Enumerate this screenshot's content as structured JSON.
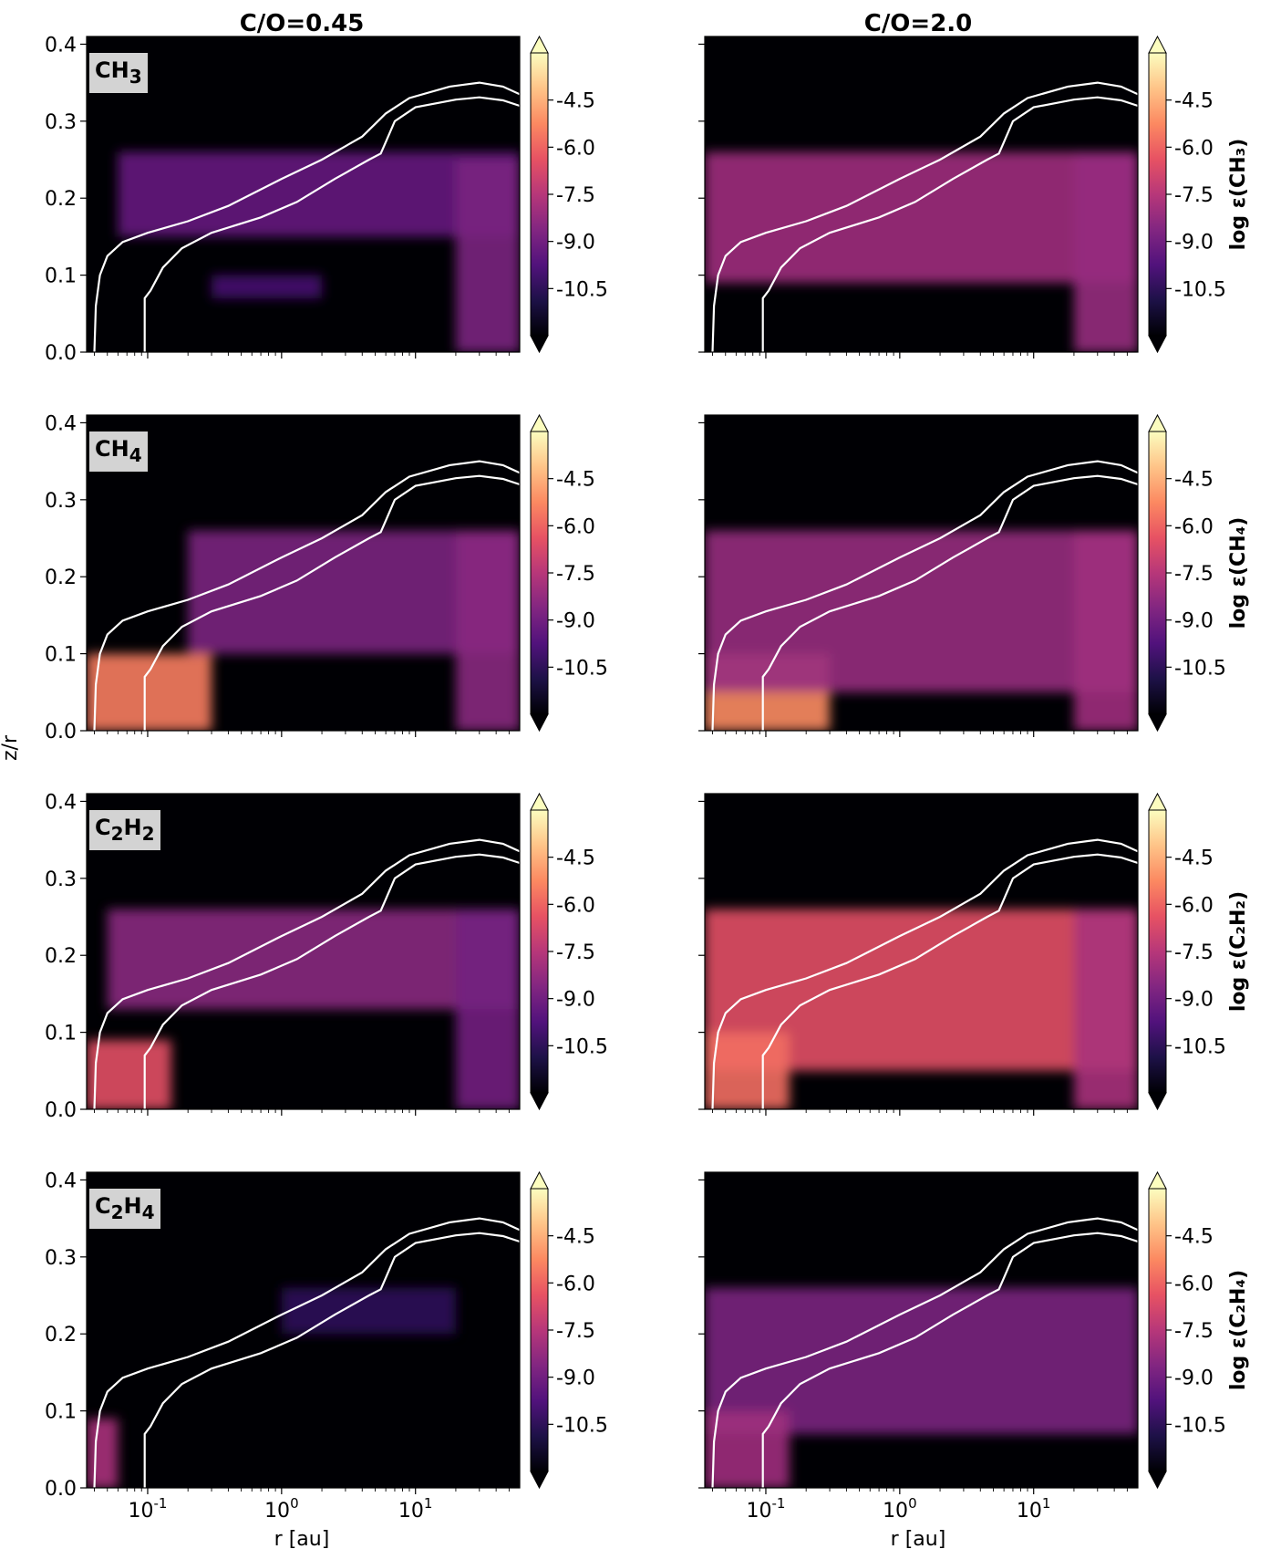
{
  "figure": {
    "ylabel": "z/r",
    "xlabel": "r [au]",
    "columns": [
      {
        "title": "C/O=0.45"
      },
      {
        "title": "C/O=2.0"
      }
    ]
  },
  "chart_data": {
    "type": "heatmap",
    "xscale": "log",
    "x_tick_labels": [
      "10^-1",
      "10^0",
      "10^1"
    ],
    "x_ticks": [
      0.1,
      1,
      10
    ],
    "xlim": [
      0.035,
      60
    ],
    "ylim": [
      0.0,
      0.41
    ],
    "y_ticks": [
      "0.0",
      "0.1",
      "0.2",
      "0.3",
      "0.4"
    ],
    "colorbar": {
      "ticks": [
        "-4.5",
        "-6.0",
        "-7.5",
        "-9.0",
        "-10.5"
      ],
      "tick_values": [
        -4.5,
        -6.0,
        -7.5,
        -9.0,
        -10.5
      ],
      "range": [
        -12,
        -3
      ],
      "extend": "both",
      "colormap": "magma"
    },
    "colormap_stops": [
      "#000004",
      "#1d1147",
      "#51127c",
      "#822681",
      "#b73779",
      "#e75263",
      "#fc8961",
      "#fec488",
      "#fcfdbf"
    ],
    "rows": [
      {
        "species_html": "CH<sub>3</sub>",
        "species_label": "CH3",
        "colorbar_label": "log ε(CH₃)"
      },
      {
        "species_html": "CH<sub>4</sub>",
        "species_label": "CH4",
        "colorbar_label": "log ε(CH₄)"
      },
      {
        "species_html": "C<sub>2</sub>H<sub>2</sub>",
        "species_label": "C2H2",
        "colorbar_label": "log ε(C₂H₂)"
      },
      {
        "species_html": "C<sub>2</sub>H<sub>4</sub>",
        "species_label": "C2H4",
        "colorbar_label": "log ε(C₂H₄)"
      }
    ],
    "contours": {
      "color": "#ffffff",
      "outer": [
        [
          0.04,
          0.0
        ],
        [
          0.041,
          0.06
        ],
        [
          0.044,
          0.1
        ],
        [
          0.05,
          0.125
        ],
        [
          0.065,
          0.143
        ],
        [
          0.1,
          0.155
        ],
        [
          0.2,
          0.17
        ],
        [
          0.4,
          0.19
        ],
        [
          1.0,
          0.225
        ],
        [
          2.0,
          0.25
        ],
        [
          4.0,
          0.28
        ],
        [
          6.0,
          0.31
        ],
        [
          9.0,
          0.33
        ],
        [
          18.0,
          0.345
        ],
        [
          30.0,
          0.35
        ],
        [
          45.0,
          0.345
        ],
        [
          60.0,
          0.335
        ]
      ],
      "inner": [
        [
          0.095,
          0.0
        ],
        [
          0.095,
          0.07
        ],
        [
          0.105,
          0.08
        ],
        [
          0.13,
          0.11
        ],
        [
          0.18,
          0.135
        ],
        [
          0.3,
          0.155
        ],
        [
          0.7,
          0.175
        ],
        [
          1.3,
          0.195
        ],
        [
          2.5,
          0.225
        ],
        [
          4.5,
          0.25
        ],
        [
          5.5,
          0.258
        ],
        [
          5.9,
          0.27
        ],
        [
          7.0,
          0.3
        ],
        [
          10.0,
          0.318
        ],
        [
          20.0,
          0.328
        ],
        [
          30.0,
          0.331
        ],
        [
          45.0,
          0.327
        ],
        [
          60.0,
          0.32
        ]
      ]
    },
    "panels": [
      {
        "row": 0,
        "col": 0,
        "regions": [
          {
            "name": "upper-warm-layer",
            "x": [
              0.06,
              60
            ],
            "y": [
              0.15,
              0.26
            ],
            "value": -9.3
          },
          {
            "name": "mid-layer-streak",
            "x": [
              0.3,
              2
            ],
            "y": [
              0.07,
              0.1
            ],
            "value": -10.0
          },
          {
            "name": "outer-disk-edge",
            "x": [
              20,
              60
            ],
            "y": [
              0.0,
              0.25
            ],
            "value": -8.8
          }
        ]
      },
      {
        "row": 0,
        "col": 1,
        "regions": [
          {
            "name": "warm-molecular-layer",
            "x": [
              0.035,
              60
            ],
            "y": [
              0.09,
              0.26
            ],
            "value": -8.0
          },
          {
            "name": "outer-disk-edge",
            "x": [
              20,
              60
            ],
            "y": [
              0.0,
              0.26
            ],
            "value": -8.2
          }
        ]
      },
      {
        "row": 1,
        "col": 0,
        "regions": [
          {
            "name": "inner-midplane",
            "x": [
              0.035,
              0.3
            ],
            "y": [
              0.0,
              0.1
            ],
            "value": -5.5
          },
          {
            "name": "molecular-layer",
            "x": [
              0.2,
              60
            ],
            "y": [
              0.1,
              0.26
            ],
            "value": -8.8
          },
          {
            "name": "outer-disk-edge",
            "x": [
              20,
              60
            ],
            "y": [
              0.0,
              0.26
            ],
            "value": -8.5
          }
        ]
      },
      {
        "row": 1,
        "col": 1,
        "regions": [
          {
            "name": "inner-midplane",
            "x": [
              0.035,
              0.3
            ],
            "y": [
              0.0,
              0.1
            ],
            "value": -5.2
          },
          {
            "name": "molecular-layer",
            "x": [
              0.035,
              60
            ],
            "y": [
              0.05,
              0.26
            ],
            "value": -8.2
          },
          {
            "name": "outer-disk-edge",
            "x": [
              20,
              60
            ],
            "y": [
              0.0,
              0.26
            ],
            "value": -8.0
          }
        ]
      },
      {
        "row": 2,
        "col": 0,
        "regions": [
          {
            "name": "inner-midplane",
            "x": [
              0.035,
              0.15
            ],
            "y": [
              0.0,
              0.09
            ],
            "value": -6.5
          },
          {
            "name": "warm-layer",
            "x": [
              0.05,
              60
            ],
            "y": [
              0.13,
              0.26
            ],
            "value": -8.5
          },
          {
            "name": "outer-disk-edge",
            "x": [
              20,
              60
            ],
            "y": [
              0.0,
              0.26
            ],
            "value": -9.0
          }
        ]
      },
      {
        "row": 2,
        "col": 1,
        "regions": [
          {
            "name": "warm-layer",
            "x": [
              0.035,
              60
            ],
            "y": [
              0.05,
              0.26
            ],
            "value": -6.5
          },
          {
            "name": "inner-midplane",
            "x": [
              0.035,
              0.15
            ],
            "y": [
              0.0,
              0.1
            ],
            "value": -5.8
          },
          {
            "name": "outer-disk-edge",
            "x": [
              20,
              60
            ],
            "y": [
              0.0,
              0.26
            ],
            "value": -7.8
          }
        ]
      },
      {
        "row": 3,
        "col": 0,
        "regions": [
          {
            "name": "inner-midplane",
            "x": [
              0.035,
              0.06
            ],
            "y": [
              0.0,
              0.09
            ],
            "value": -7.8
          },
          {
            "name": "upper-layer",
            "x": [
              1,
              20
            ],
            "y": [
              0.2,
              0.26
            ],
            "value": -10.5
          }
        ]
      },
      {
        "row": 3,
        "col": 1,
        "regions": [
          {
            "name": "molecular-layer",
            "x": [
              0.035,
              60
            ],
            "y": [
              0.07,
              0.26
            ],
            "value": -8.8
          },
          {
            "name": "inner-midplane",
            "x": [
              0.035,
              0.15
            ],
            "y": [
              0.0,
              0.1
            ],
            "value": -8.0
          }
        ]
      }
    ]
  }
}
